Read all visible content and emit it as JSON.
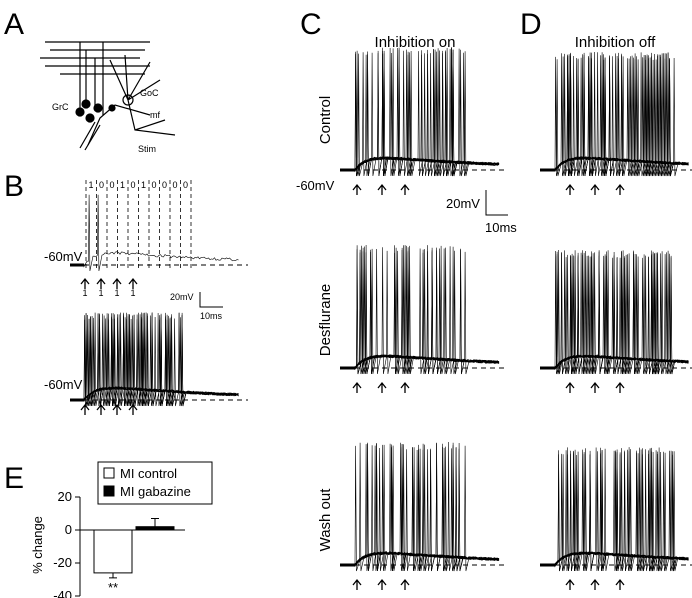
{
  "panels": {
    "letters": [
      "A",
      "B",
      "C",
      "D",
      "E"
    ],
    "a": {
      "labels": [
        "GrC",
        "GoC",
        "mf",
        "Stim"
      ]
    },
    "b": {
      "spike_codes": [
        "1",
        "0",
        "0",
        "1",
        "0",
        "1",
        "0",
        "0",
        "0",
        "0"
      ],
      "stim_codes": [
        "1",
        "1",
        "1",
        "1"
      ],
      "potential": "-60mV",
      "potential_2": "-60mV",
      "scale_v": "20mV",
      "scale_t": "10ms"
    },
    "c": {
      "title": "Inhibition on",
      "potential": "-60mV",
      "scale_v": "20mV",
      "scale_t": "10ms"
    },
    "d": {
      "title": "Inhibition off"
    },
    "rows": [
      "Control",
      "Desflurane",
      "Wash out"
    ]
  },
  "chart_data": {
    "type": "bar",
    "ylabel": "% change",
    "categories": [
      "MI control",
      "MI gabazine"
    ],
    "values": [
      -26,
      2
    ],
    "errors": [
      3,
      5
    ],
    "colors": [
      "#ffffff",
      "#000000"
    ],
    "annotation": "**",
    "ylim": [
      -40,
      20
    ],
    "yticks": [
      -40,
      -20,
      0,
      20
    ]
  }
}
